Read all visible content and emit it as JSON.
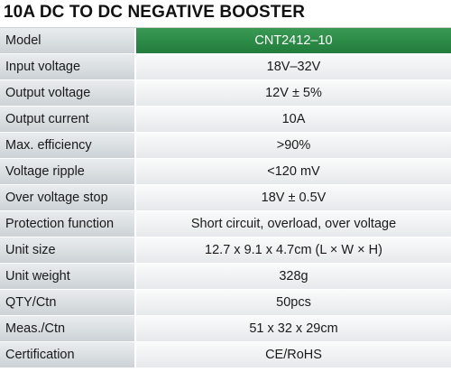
{
  "title": "10A DC TO DC NEGATIVE BOOSTER",
  "colors": {
    "header_accent": "#2b8a46",
    "label_bg": "#d9dee1",
    "value_bg": "#eef0f1"
  },
  "specs": [
    {
      "label": "Model",
      "value": "CNT2412–10"
    },
    {
      "label": "Input voltage",
      "value": "18V–32V"
    },
    {
      "label": "Output voltage",
      "value": "12V ± 5%"
    },
    {
      "label": "Output current",
      "value": "10A"
    },
    {
      "label": "Max. efficiency",
      "value": ">90%"
    },
    {
      "label": "Voltage ripple",
      "value": "<120 mV"
    },
    {
      "label": "Over voltage stop",
      "value": "18V ± 0.5V"
    },
    {
      "label": "Protection function",
      "value": "Short circuit, overload, over voltage"
    },
    {
      "label": "Unit size",
      "value": "12.7 x 9.1 x 4.7cm (L × W × H)"
    },
    {
      "label": "Unit weight",
      "value": "328g"
    },
    {
      "label": "QTY/Ctn",
      "value": "50pcs"
    },
    {
      "label": "Meas./Ctn",
      "value": "51 x 32 x 29cm"
    },
    {
      "label": "Certification",
      "value": "CE/RoHS"
    }
  ]
}
